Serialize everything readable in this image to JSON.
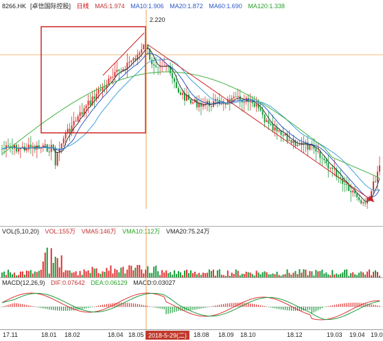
{
  "header": {
    "symbol": "8266.HK",
    "name": "[卓信国际控股]",
    "period": "日线",
    "ma5": "MA5:1.974",
    "ma10": "MA10:1.906",
    "ma20": "MA20:1.872",
    "ma60": "MA60:1.690",
    "ma120": "MA120:1.338",
    "peak_label": "2.220"
  },
  "volume_legend": {
    "title": "VOL(5,10,20)",
    "vol": "VOL:155万",
    "vma5": "VMA5:146万",
    "vma10": "VMA10:112万",
    "vma20": "VMA20:75.24万"
  },
  "macd_legend": {
    "title": "MACD(12,26,9)",
    "dif": "DIF:0.07642",
    "dea": "DEA:0.06129",
    "macd": "MACD:0.03027"
  },
  "xaxis": {
    "labels": [
      "17.11",
      "18.01",
      "18.02",
      "18.04",
      "18.05",
      "18.08",
      "18.09",
      "18.10",
      "18.12",
      "19.03",
      "19.04",
      "19.0"
    ],
    "highlight": "2018-5-29(二)"
  },
  "colors": {
    "up": "#e03030",
    "down": "#1a9a3a",
    "ma5": "#333333",
    "ma10": "#2a56c6",
    "ma20": "#3aa0d8",
    "ma60": "#40b040",
    "ma120": "#e08ad0",
    "crosshair": "#f0a050",
    "annotation": "#cc2222"
  }
}
